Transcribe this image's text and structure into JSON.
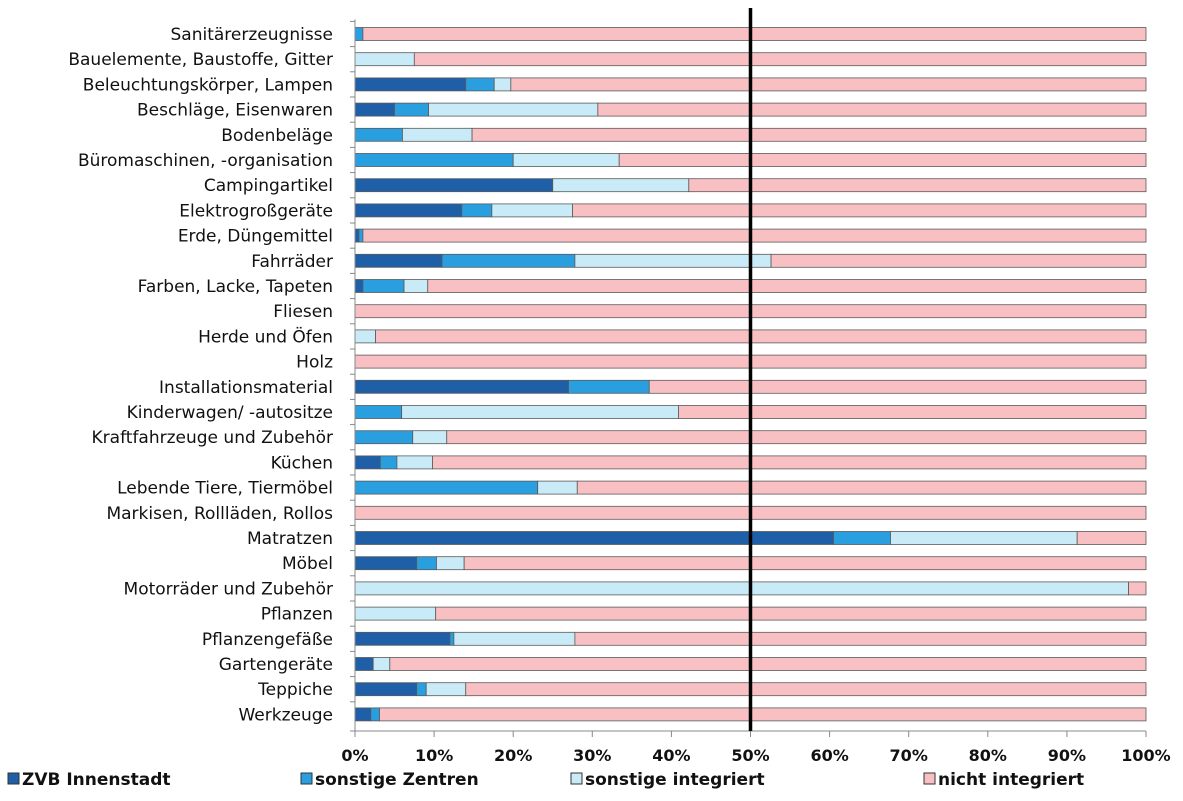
{
  "chart_data": {
    "type": "bar",
    "orientation": "horizontal",
    "stacked": true,
    "categories": [
      "Sanitärerzeugnisse",
      "Bauelemente, Baustoffe, Gitter",
      "Beleuchtungskörper, Lampen",
      "Beschläge, Eisenwaren",
      "Bodenbeläge",
      "Büromaschinen, -organisation",
      "Campingartikel",
      "Elektrogroßgeräte",
      "Erde, Düngemittel",
      "Fahrräder",
      "Farben, Lacke, Tapeten",
      "Fliesen",
      "Herde und Öfen",
      "Holz",
      "Installationsmaterial",
      "Kinderwagen/ -autositze",
      "Kraftfahrzeuge und Zubehör",
      "Küchen",
      "Lebende Tiere, Tiermöbel",
      "Markisen, Rollläden, Rollos",
      "Matratzen",
      "Möbel",
      "Motorräder und Zubehör",
      "Pflanzen",
      "Pflanzengefäße",
      "Gartengeräte",
      "Teppiche",
      "Werkzeuge"
    ],
    "series": [
      {
        "name": "ZVB Innenstadt",
        "color": "#1f5fa8",
        "values": [
          0,
          0,
          14,
          5,
          0,
          0,
          25,
          13.5,
          0.5,
          11,
          1,
          0,
          0,
          0,
          27,
          0,
          0,
          3.2,
          0,
          0,
          60.5,
          7.8,
          0,
          0,
          12,
          2.3,
          7.8,
          2
        ]
      },
      {
        "name": "sonstige Zentren",
        "color": "#2a9fe0",
        "values": [
          1,
          0,
          3.6,
          4.3,
          6,
          20,
          0,
          3.8,
          0.5,
          16.8,
          5.2,
          0,
          0,
          0,
          10.2,
          5.9,
          7.3,
          2.1,
          23.1,
          0,
          7.2,
          2.5,
          0,
          0,
          0.5,
          0,
          1.2,
          1.1
        ]
      },
      {
        "name": "sonstige integriert",
        "color": "#c9ebf8",
        "values": [
          0,
          7.5,
          2.1,
          21.4,
          8.8,
          13.4,
          17.2,
          10.2,
          0,
          24.8,
          3,
          0,
          2.6,
          0,
          0,
          35,
          4.3,
          4.5,
          5,
          0,
          23.6,
          3.5,
          97.8,
          10.2,
          15.3,
          2.1,
          5,
          0
        ]
      },
      {
        "name": "nicht integriert",
        "color": "#f9c0c4",
        "values": [
          99,
          92.5,
          80.3,
          69.3,
          85.2,
          66.6,
          57.8,
          72.5,
          99,
          47.4,
          90.8,
          100,
          97.4,
          100,
          62.8,
          59.1,
          88.4,
          90.2,
          71.9,
          100,
          8.7,
          86.2,
          2.2,
          89.8,
          72.2,
          95.6,
          86,
          96.9
        ]
      }
    ],
    "x_ticks": [
      "0%",
      "10%",
      "20%",
      "30%",
      "40%",
      "50%",
      "60%",
      "70%",
      "80%",
      "90%",
      "100%"
    ],
    "xlim": [
      0,
      100
    ],
    "reference_line": 50,
    "legend_position": "bottom"
  }
}
